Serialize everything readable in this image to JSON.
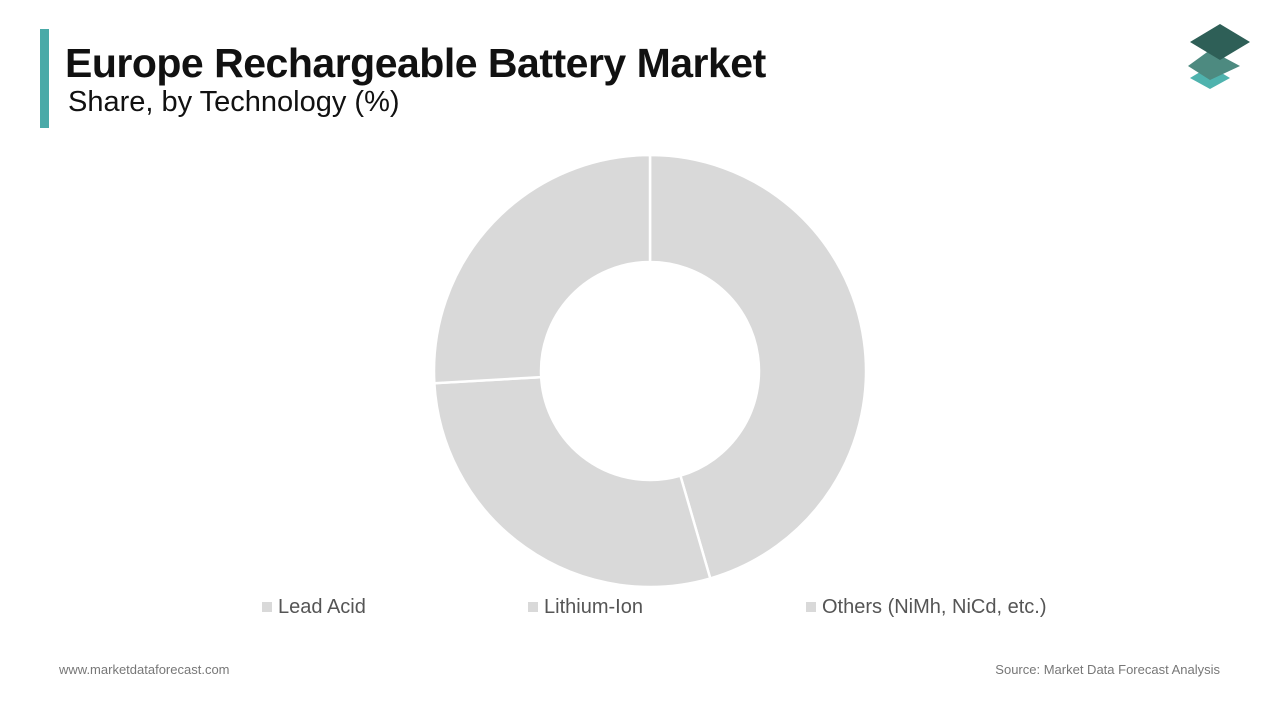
{
  "header": {
    "title": "Europe Rechargeable Battery Market",
    "subtitle": "Share, by Technology  (%)",
    "accent_color": "#4aaaa8"
  },
  "logo": {
    "icon": "stacked-layers-logo",
    "colors": [
      "#2e5f57",
      "#4d8a80",
      "#4fb3ae"
    ]
  },
  "chart_data": {
    "type": "pie",
    "donut": true,
    "categories": [
      "Lead Acid",
      "Lithium-Ion",
      "Others (NiMh, NiCd, etc.)"
    ],
    "values": [
      45.5,
      28.6,
      25.9
    ],
    "colors": [
      "#d9d9d9",
      "#d9d9d9",
      "#d9d9d9"
    ],
    "legend_position": "bottom"
  },
  "footer": {
    "website": "www.marketdataforecast.com",
    "source": "Source: Market Data Forecast Analysis"
  }
}
